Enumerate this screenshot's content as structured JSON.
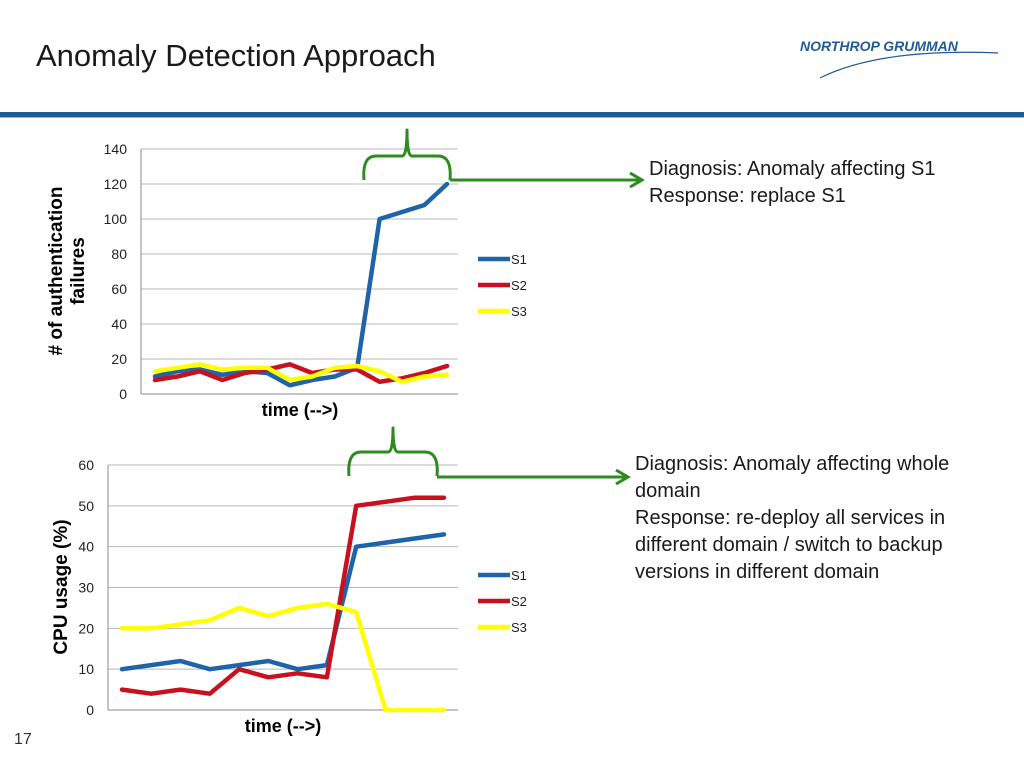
{
  "slide": {
    "title": "Anomaly Detection Approach",
    "logo_text": "NORTHROP GRUMMAN",
    "page_number": "17"
  },
  "notes": [
    {
      "lines": [
        "Diagnosis: Anomaly affecting S1",
        "Response: replace S1"
      ]
    },
    {
      "lines": [
        "Diagnosis: Anomaly affecting whole domain",
        "Response: re-deploy all services in different domain / switch to backup versions in different domain"
      ]
    }
  ],
  "colors": {
    "S1": "#1f63a8",
    "S2": "#c8101e",
    "S3": "#ffff00",
    "accent": "#1f5c94",
    "bracket": "#2e8b1f"
  },
  "chart_data": [
    {
      "type": "line",
      "xlabel": "time (-->)",
      "ylabel": "# of authentication failures",
      "ylim": [
        0,
        140
      ],
      "yticks": [
        0,
        20,
        40,
        60,
        80,
        100,
        120,
        140
      ],
      "grid": true,
      "legend": "right",
      "series": [
        {
          "name": "S1",
          "values": [
            10,
            13,
            14,
            11,
            13,
            12,
            5,
            8,
            10,
            15,
            100,
            104,
            108,
            120
          ]
        },
        {
          "name": "S2",
          "values": [
            8,
            10,
            13,
            8,
            12,
            14,
            17,
            12,
            14,
            14,
            7,
            9,
            12,
            16
          ]
        },
        {
          "name": "S3",
          "values": [
            13,
            15,
            17,
            14,
            15,
            15,
            8,
            10,
            15,
            16,
            13,
            7,
            10,
            11
          ]
        }
      ]
    },
    {
      "type": "line",
      "xlabel": "time (-->)",
      "ylabel": "CPU usage (%)",
      "ylim": [
        0,
        60
      ],
      "yticks": [
        0,
        10,
        20,
        30,
        40,
        50,
        60
      ],
      "grid": true,
      "legend": "right",
      "series": [
        {
          "name": "S1",
          "values": [
            10,
            11,
            12,
            10,
            11,
            12,
            10,
            11,
            40,
            41,
            42,
            43
          ]
        },
        {
          "name": "S2",
          "values": [
            5,
            4,
            5,
            4,
            10,
            8,
            9,
            8,
            50,
            51,
            52,
            52
          ]
        },
        {
          "name": "S3",
          "values": [
            20,
            20,
            21,
            22,
            25,
            23,
            25,
            26,
            24,
            0,
            0,
            0
          ]
        }
      ]
    }
  ]
}
